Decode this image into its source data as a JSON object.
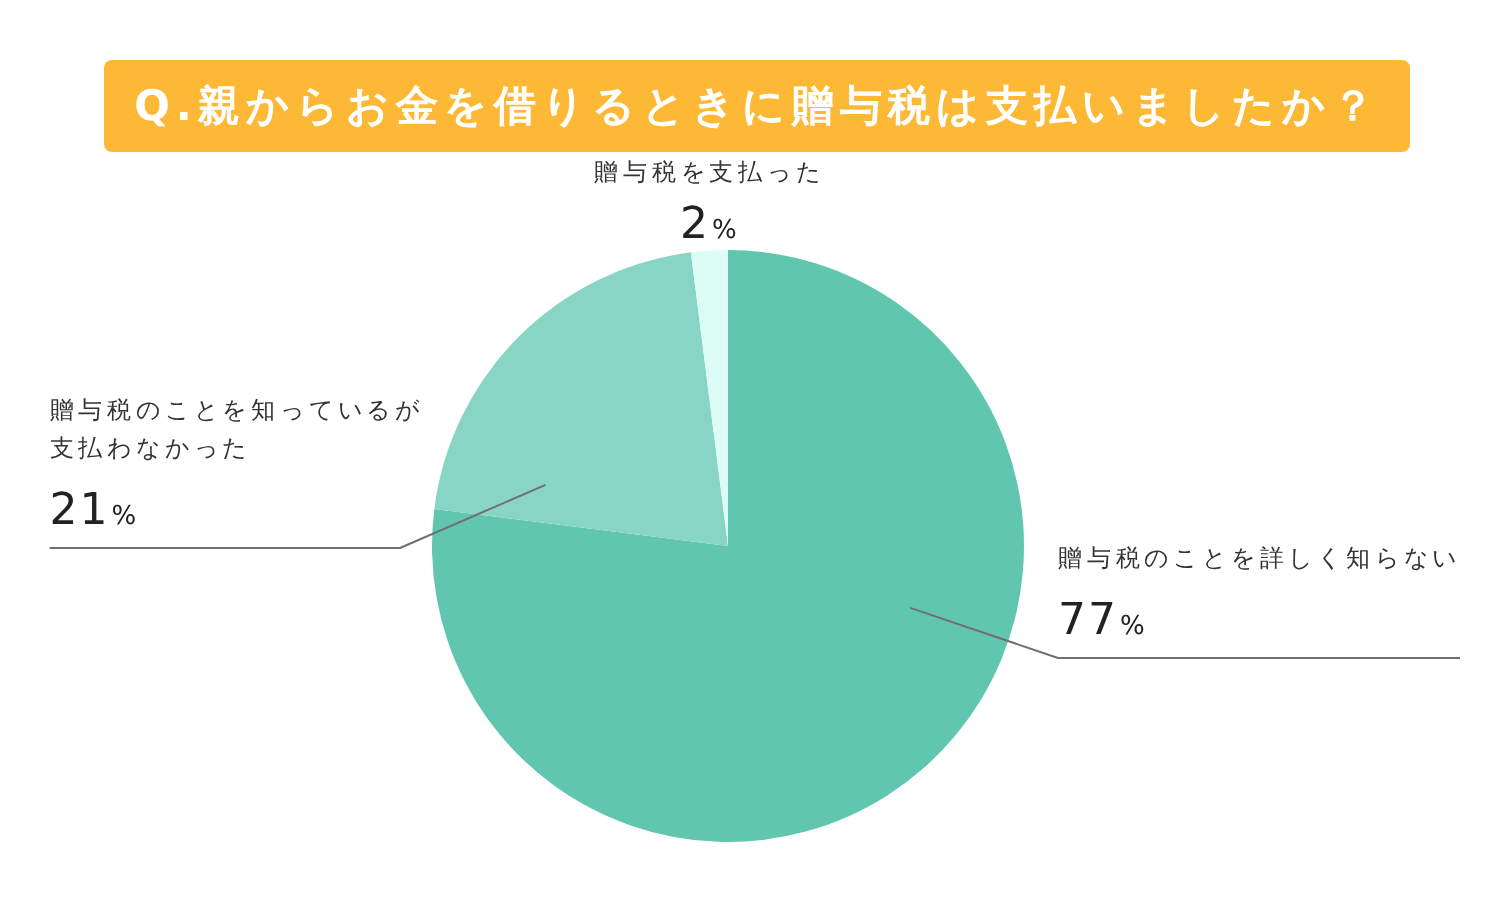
{
  "chart_data": {
    "type": "pie",
    "title": "Q.親からお金を借りるときに贈与税は支払いましたか？",
    "categories": [
      "贈与税のことを詳しく知らない",
      "贈与税のことを知っているが支払わなかった",
      "贈与税を支払った"
    ],
    "values": [
      77,
      21,
      2
    ],
    "colors": [
      "#61c6b0",
      "#89d5c5",
      "#dcfcf5"
    ],
    "value_labels": [
      "77%",
      "21%",
      "2%"
    ],
    "legend": false
  }
}
